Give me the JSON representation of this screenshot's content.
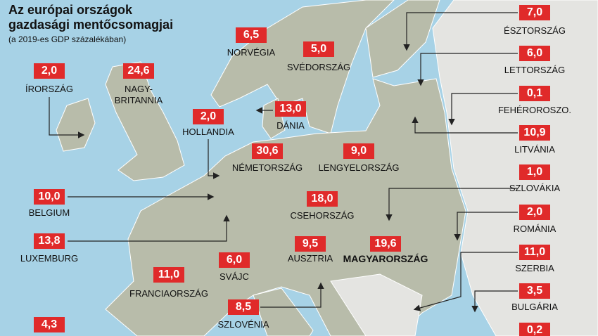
{
  "header": {
    "title": "Az európai országok gazdasági mentőcsomagjai",
    "subtitle": "(a 2019-es GDP százalékában)"
  },
  "countries": [
    {
      "name": "ÍRORSZÁG",
      "value": "2,0"
    },
    {
      "name": "NAGY-\nBRITANNIA",
      "value": "24,6"
    },
    {
      "name": "NORVÉGIA",
      "value": "6,5"
    },
    {
      "name": "SVÉDORSZÁG",
      "value": "5,0"
    },
    {
      "name": "DÁNIA",
      "value": "13,0"
    },
    {
      "name": "HOLLANDIA",
      "value": "2,0"
    },
    {
      "name": "NÉMETORSZÁG",
      "value": "30,6"
    },
    {
      "name": "LENGYELORSZÁG",
      "value": "9,0"
    },
    {
      "name": "BELGIUM",
      "value": "10,0"
    },
    {
      "name": "CSEHORSZÁG",
      "value": "18,0"
    },
    {
      "name": "LUXEMBURG",
      "value": "13,8"
    },
    {
      "name": "SVÁJC",
      "value": "6,0"
    },
    {
      "name": "AUSZTRIA",
      "value": "9,5"
    },
    {
      "name": "MAGYARORSZÁG",
      "value": "19,6"
    },
    {
      "name": "FRANCIAORSZÁG",
      "value": "11,0"
    },
    {
      "name": "SZLOVÉNIA",
      "value": "8,5"
    },
    {
      "value": "4,3"
    },
    {
      "name": "ÉSZTORSZÁG",
      "value": "7,0"
    },
    {
      "name": "LETTORSZÁG",
      "value": "6,0"
    },
    {
      "name": "FEHÉROROSZO.",
      "value": "0,1"
    },
    {
      "name": "LITVÁNIA",
      "value": "10,9"
    },
    {
      "name": "SZLOVÁKIA",
      "value": "1,0"
    },
    {
      "name": "ROMÁNIA",
      "value": "2,0"
    },
    {
      "name": "SZERBIA",
      "value": "11,0"
    },
    {
      "name": "BULGÁRIA",
      "value": "3,5"
    },
    {
      "value": "0,2"
    }
  ]
}
